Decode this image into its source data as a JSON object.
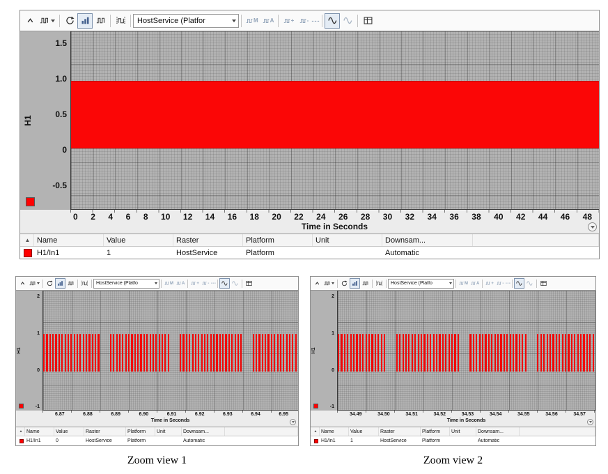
{
  "chart_data": [
    {
      "type": "line",
      "title": "Oscilloscope main view - H1/In1",
      "xlabel": "Time in Seconds",
      "ylabel": "H1",
      "xlim": [
        0,
        49
      ],
      "ylim": [
        -0.9,
        1.75
      ],
      "x_ticks": [
        0,
        2,
        4,
        6,
        8,
        10,
        12,
        14,
        16,
        18,
        20,
        22,
        24,
        26,
        28,
        30,
        32,
        34,
        36,
        38,
        40,
        42,
        44,
        46,
        48
      ],
      "y_ticks": [
        1.5,
        1.0,
        0.5,
        0,
        -0.5
      ],
      "grid": true,
      "series": [
        {
          "name": "H1/In1",
          "low": 0,
          "high": 1,
          "waveform": "high-frequency PWM square wave toggling between 0 and 1; renders as a solid red band from y=0 to y=1 across the entire 0-49 s window"
        }
      ]
    },
    {
      "type": "line",
      "title": "Zoom view 1 - H1/In1",
      "xlabel": "Time in Seconds",
      "ylabel": "H1",
      "xlim": [
        6.862,
        6.953
      ],
      "ylim": [
        -1.5,
        2.3
      ],
      "x_ticks": [
        6.87,
        6.88,
        6.89,
        6.9,
        6.91,
        6.92,
        6.93,
        6.94,
        6.95
      ],
      "y_ticks": [
        2,
        1,
        0,
        -1
      ],
      "grid": true,
      "series": [
        {
          "name": "H1/In1",
          "low": 0,
          "high": 1,
          "waveform": "individual square pulses from 0 to 1, period approx 0.0012 s",
          "gap_locations_s": [
            6.884,
            6.912,
            6.938
          ]
        }
      ]
    },
    {
      "type": "line",
      "title": "Zoom view 2 - H1/In1",
      "xlabel": "Time in Seconds",
      "ylabel": "H1",
      "xlim": [
        34.485,
        34.575
      ],
      "ylim": [
        -1.5,
        2.3
      ],
      "x_ticks": [
        34.49,
        34.5,
        34.51,
        34.52,
        34.53,
        34.54,
        34.55,
        34.56,
        34.57
      ],
      "y_ticks": [
        2,
        1,
        0,
        -1
      ],
      "grid": true,
      "series": [
        {
          "name": "H1/In1",
          "low": 0,
          "high": 1,
          "waveform": "individual square pulses from 0 to 1, period approx 0.0012 s",
          "gap_locations_s": [
            34.503,
            34.528,
            34.551
          ]
        }
      ]
    }
  ],
  "shared": {
    "x_axis_label": "Time in Seconds",
    "y_axis_label": "H1",
    "signal_color": "#ff0000",
    "table_headers": {
      "sort": "▲",
      "name": "Name",
      "value": "Value",
      "raster": "Raster",
      "platform": "Platform",
      "unit": "Unit",
      "downsampling": "Downsam..."
    }
  },
  "toolbar": {
    "raster_main": "HostService (Platfor",
    "raster_zoom": "HostService (Platfo",
    "labels": {
      "m": "M",
      "a": "A",
      "plus": "+",
      "minus": "-",
      "dots": "---"
    }
  },
  "main_panel": {
    "y_ticks": [
      "1.5",
      "1.0",
      "0.5",
      "0",
      "-0.5"
    ],
    "x_ticks": [
      "0",
      "2",
      "4",
      "6",
      "8",
      "10",
      "12",
      "14",
      "16",
      "18",
      "20",
      "22",
      "24",
      "26",
      "28",
      "30",
      "32",
      "34",
      "36",
      "38",
      "40",
      "42",
      "44",
      "46",
      "48"
    ],
    "row": {
      "name": "H1/In1",
      "value": "1",
      "raster": "HostService",
      "platform": "Platform",
      "unit": "",
      "downsampling": "Automatic"
    }
  },
  "zoom1": {
    "caption": "Zoom view 1",
    "y_ticks": [
      "2",
      "1",
      "0",
      "-1"
    ],
    "x_ticks": [
      "6.87",
      "6.88",
      "6.89",
      "6.90",
      "6.91",
      "6.92",
      "6.93",
      "6.94",
      "6.95"
    ],
    "row": {
      "name": "H1/In1",
      "value": "0",
      "raster": "HostService",
      "platform": "Platform",
      "unit": "",
      "downsampling": "Automatic"
    },
    "pulses": {
      "count": 84,
      "duty": 0.5,
      "gaps": [
        [
          0.225,
          0.26
        ],
        [
          0.5,
          0.535
        ],
        [
          0.775,
          0.81
        ]
      ]
    }
  },
  "zoom2": {
    "caption": "Zoom view 2",
    "y_ticks": [
      "2",
      "1",
      "0",
      "-1"
    ],
    "x_ticks": [
      "34.49",
      "34.50",
      "34.51",
      "34.52",
      "34.53",
      "34.54",
      "34.55",
      "34.56",
      "34.57"
    ],
    "row": {
      "name": "H1/In1",
      "value": "1",
      "raster": "HostService",
      "platform": "Platform",
      "unit": "",
      "downsampling": "Automatic"
    },
    "pulses": {
      "count": 84,
      "duty": 0.5,
      "gaps": [
        [
          0.19,
          0.225
        ],
        [
          0.475,
          0.51
        ],
        [
          0.735,
          0.77
        ]
      ]
    }
  }
}
